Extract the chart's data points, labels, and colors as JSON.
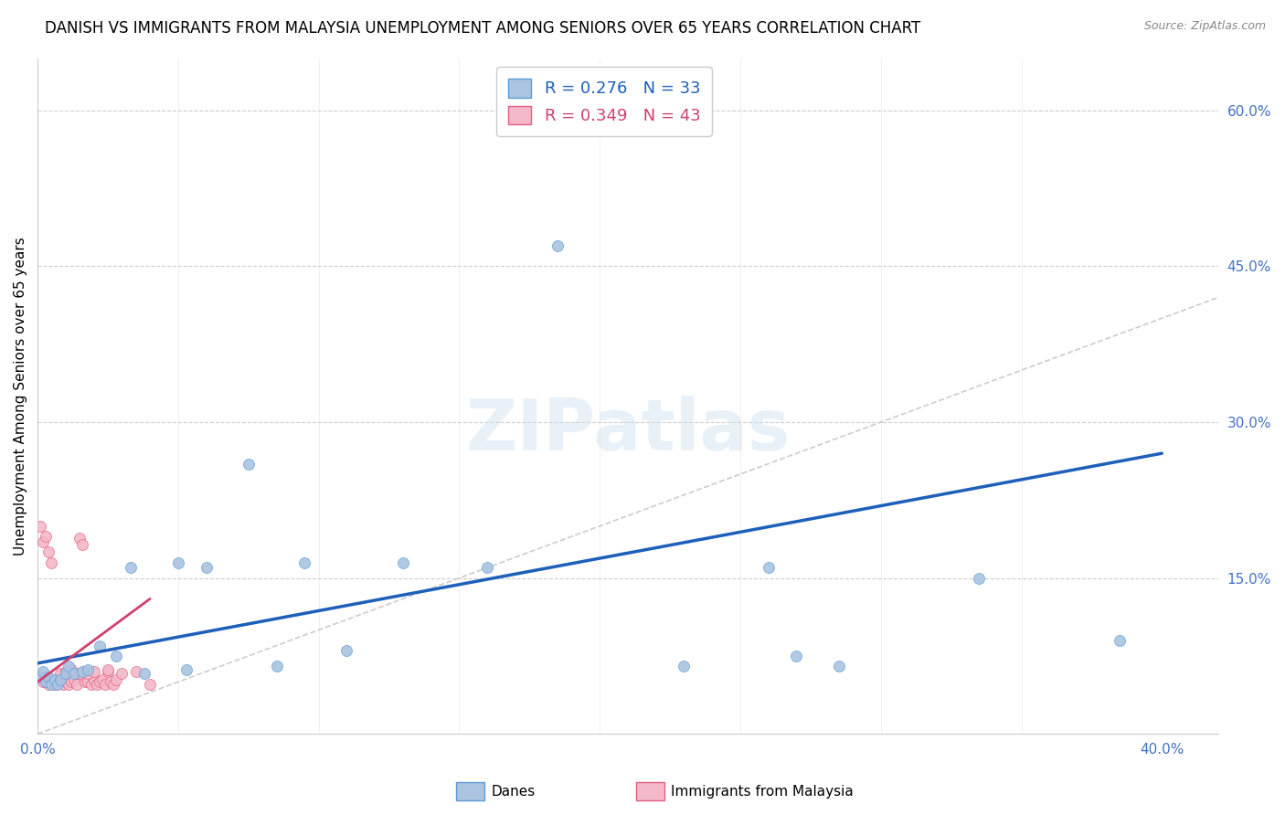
{
  "title": "DANISH VS IMMIGRANTS FROM MALAYSIA UNEMPLOYMENT AMONG SENIORS OVER 65 YEARS CORRELATION CHART",
  "source": "Source: ZipAtlas.com",
  "ylabel": "Unemployment Among Seniors over 65 years",
  "xlim": [
    0.0,
    0.42
  ],
  "ylim": [
    0.0,
    0.65
  ],
  "grid_color": "#cccccc",
  "background_color": "#ffffff",
  "danes_color": "#aac4e2",
  "danes_edge_color": "#5b9bd5",
  "danes_line_color": "#1e5fba",
  "danes_R": 0.276,
  "danes_N": 33,
  "immigrants_color": "#f5b8c8",
  "immigrants_edge_color": "#e06080",
  "immigrants_line_color": "#d04070",
  "immigrants_R": 0.349,
  "immigrants_N": 43,
  "danes_x": [
    0.001,
    0.002,
    0.003,
    0.004,
    0.005,
    0.006,
    0.007,
    0.008,
    0.01,
    0.011,
    0.013,
    0.016,
    0.018,
    0.022,
    0.028,
    0.033,
    0.038,
    0.05,
    0.053,
    0.06,
    0.075,
    0.085,
    0.095,
    0.11,
    0.13,
    0.16,
    0.185,
    0.23,
    0.26,
    0.27,
    0.285,
    0.335,
    0.385
  ],
  "danes_y": [
    0.055,
    0.06,
    0.05,
    0.055,
    0.048,
    0.052,
    0.048,
    0.052,
    0.058,
    0.065,
    0.058,
    0.06,
    0.062,
    0.085,
    0.075,
    0.16,
    0.058,
    0.165,
    0.062,
    0.16,
    0.26,
    0.065,
    0.165,
    0.08,
    0.165,
    0.16,
    0.47,
    0.065,
    0.16,
    0.075,
    0.065,
    0.15,
    0.09
  ],
  "immigrants_x": [
    0.001,
    0.002,
    0.003,
    0.004,
    0.005,
    0.006,
    0.007,
    0.008,
    0.009,
    0.01,
    0.011,
    0.012,
    0.013,
    0.014,
    0.015,
    0.016,
    0.017,
    0.018,
    0.019,
    0.02,
    0.021,
    0.022,
    0.023,
    0.024,
    0.025,
    0.026,
    0.027,
    0.028,
    0.001,
    0.002,
    0.003,
    0.004,
    0.005,
    0.008,
    0.01,
    0.012,
    0.015,
    0.018,
    0.02,
    0.025,
    0.03,
    0.035,
    0.04
  ],
  "immigrants_y": [
    0.055,
    0.05,
    0.052,
    0.048,
    0.05,
    0.048,
    0.052,
    0.05,
    0.048,
    0.055,
    0.048,
    0.05,
    0.052,
    0.048,
    0.188,
    0.182,
    0.05,
    0.05,
    0.048,
    0.052,
    0.048,
    0.05,
    0.052,
    0.048,
    0.06,
    0.05,
    0.048,
    0.052,
    0.2,
    0.185,
    0.19,
    0.175,
    0.165,
    0.058,
    0.06,
    0.062,
    0.058,
    0.058,
    0.06,
    0.062,
    0.058,
    0.06,
    0.048
  ],
  "legend_labels": [
    "Danes",
    "Immigrants from Malaysia"
  ],
  "marker_size": 75,
  "title_fontsize": 12,
  "axis_label_fontsize": 11,
  "tick_fontsize": 11,
  "danes_trend": [
    0.0,
    0.4,
    0.068,
    0.27
  ],
  "immigrants_trend": [
    0.0,
    0.04,
    0.05,
    0.13
  ],
  "ref_line": [
    0.0,
    0.6
  ]
}
